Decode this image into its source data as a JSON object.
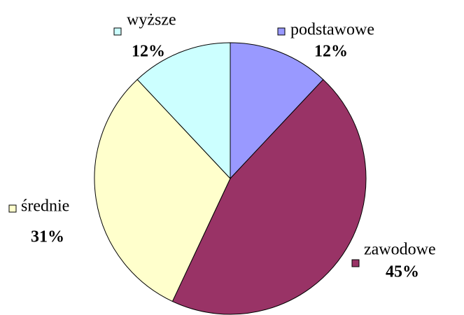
{
  "chart_data": {
    "type": "pie",
    "categories": [
      "podstawowe",
      "zawodowe",
      "średnie",
      "wyższe"
    ],
    "values": [
      12,
      45,
      31,
      12
    ],
    "value_labels": [
      "12%",
      "45%",
      "31%",
      "12%"
    ],
    "colors": [
      "#9999ff",
      "#993366",
      "#ffffcc",
      "#ccffff"
    ]
  }
}
